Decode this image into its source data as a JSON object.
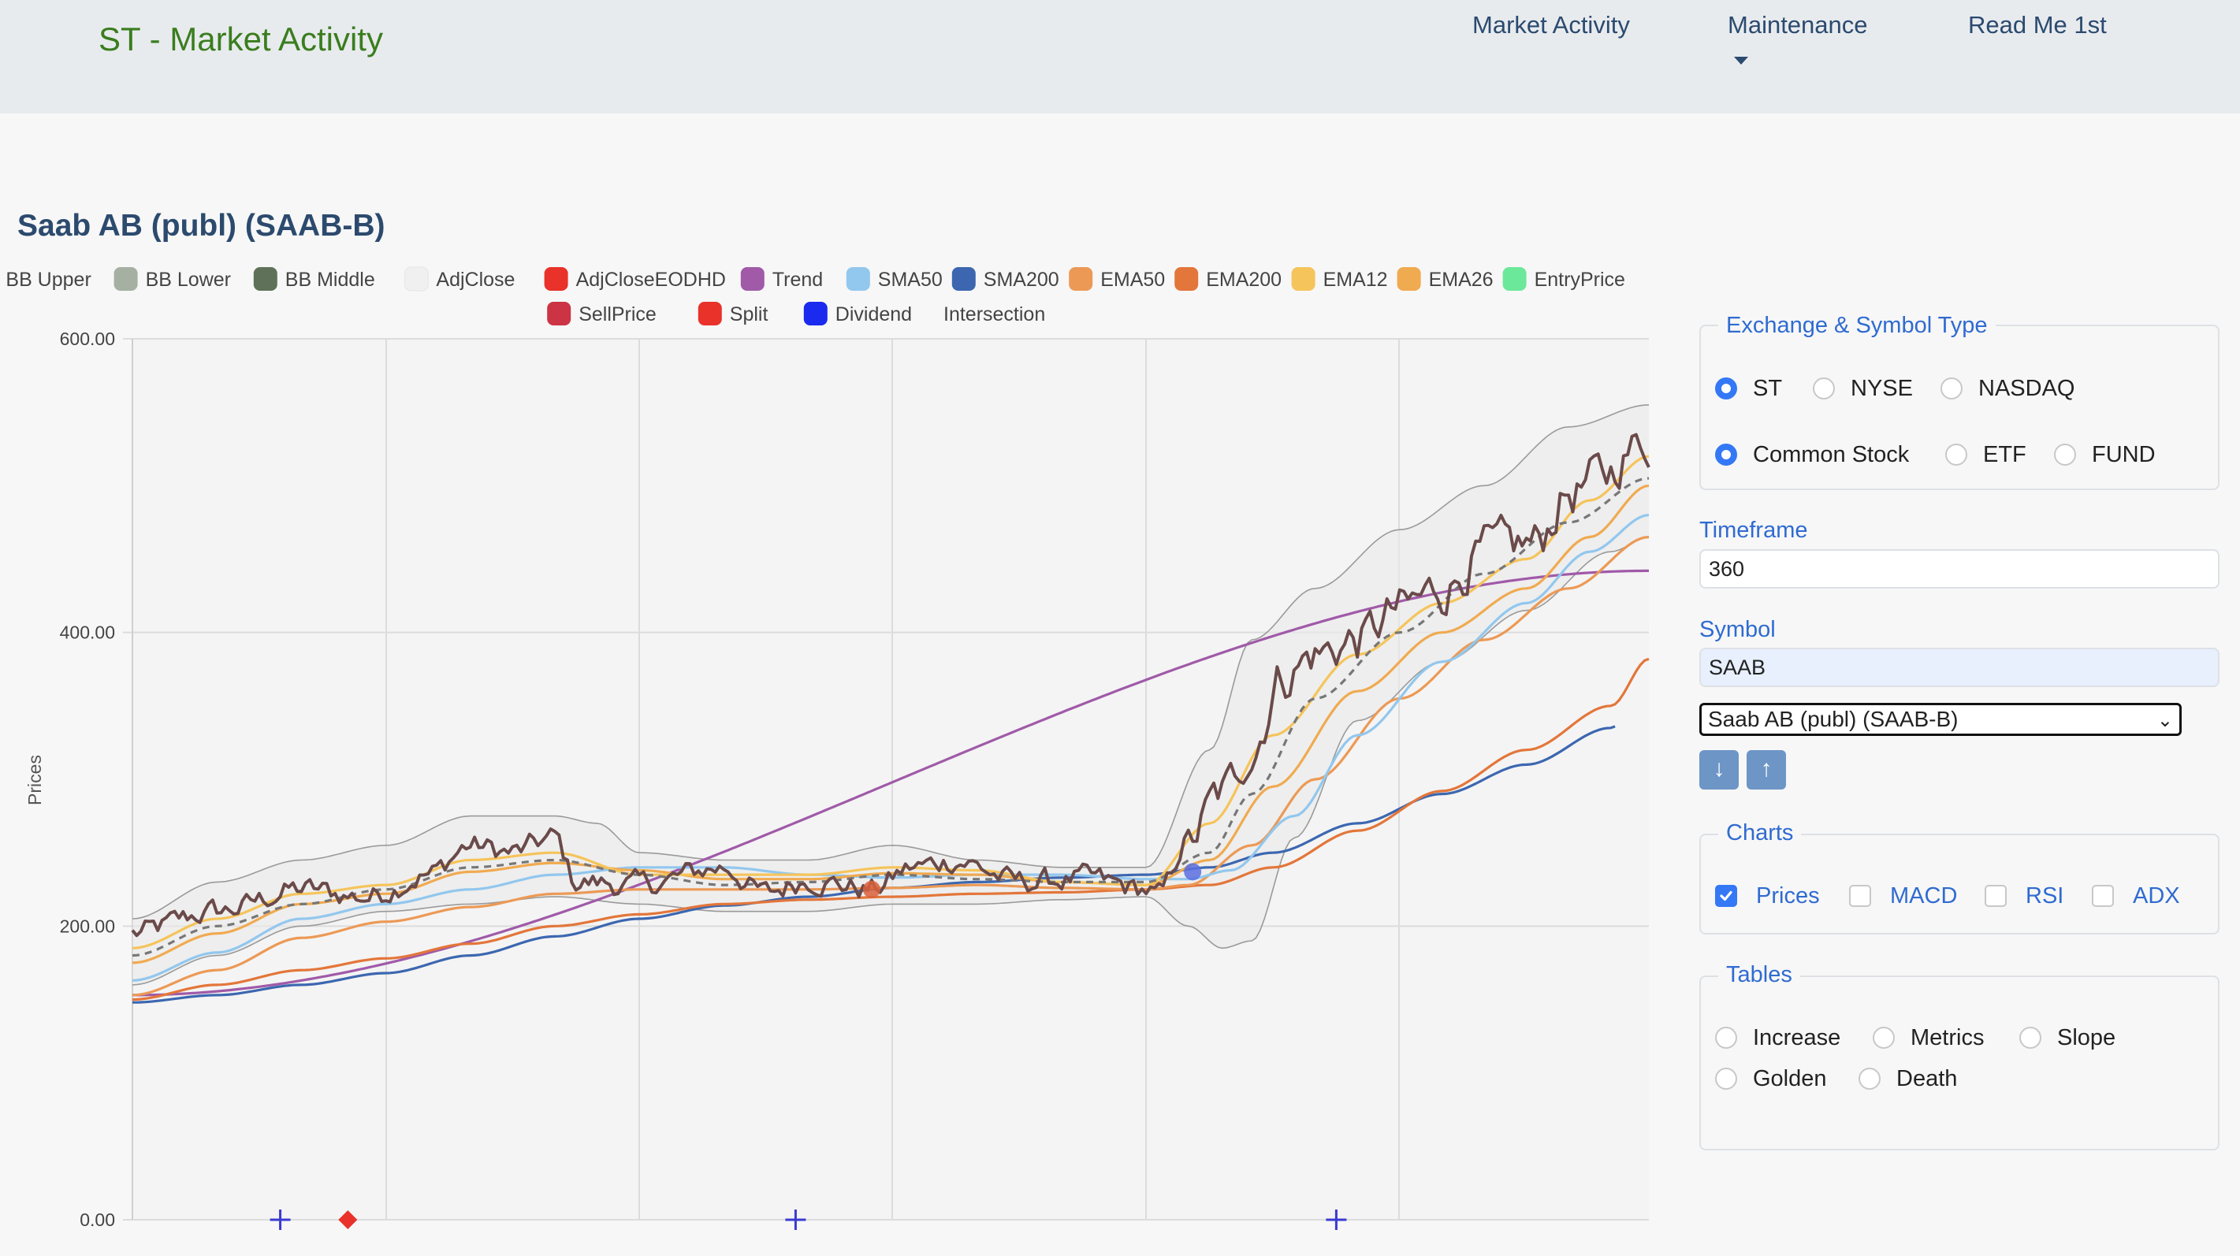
{
  "app": {
    "brand": "ST - Market Activity"
  },
  "nav": {
    "market_activity": "Market Activity",
    "maintenance": "Maintenance",
    "read_me": "Read Me 1st"
  },
  "page": {
    "title": "Saab AB (publ) (SAAB-B)"
  },
  "sidebar": {
    "exchange": {
      "title": "Exchange & Symbol Type",
      "exchanges": [
        "ST",
        "NYSE",
        "NASDAQ"
      ],
      "selected_exchange": "ST",
      "types": [
        "Common Stock",
        "ETF",
        "FUND"
      ],
      "selected_type": "Common Stock"
    },
    "timeframe": {
      "label": "Timeframe",
      "value": "360"
    },
    "symbol": {
      "label": "Symbol",
      "value": "SAAB",
      "selected_option": "Saab AB (publ) (SAAB-B)",
      "down_icon": "arrow-down-icon",
      "up_icon": "arrow-up-icon"
    },
    "charts": {
      "title": "Charts",
      "options": [
        "Prices",
        "MACD",
        "RSI",
        "ADX"
      ],
      "checked": [
        "Prices"
      ]
    },
    "tables": {
      "title": "Tables",
      "options": [
        "Increase",
        "Metrics",
        "Slope",
        "Golden",
        "Death"
      ]
    }
  },
  "colors": {
    "accent": "#3478f6",
    "brand": "#3a7d1e",
    "nav_text": "#2b4a6f",
    "section_title": "#2f6bd1"
  },
  "chart_data": {
    "type": "line",
    "ylabel": "Prices",
    "ylim": [
      0,
      600
    ],
    "yticks": [
      "0.00",
      "200.00",
      "400.00",
      "600.00"
    ],
    "grid": true,
    "legend_position": "top",
    "legend": [
      {
        "name": "BB Upper",
        "color": "#8a9a86"
      },
      {
        "name": "BB Lower",
        "color": "#a5b0a2"
      },
      {
        "name": "BB Middle",
        "color": "#5f7159"
      },
      {
        "name": "AdjClose",
        "color": "#f0f0f0"
      },
      {
        "name": "AdjCloseEODHD",
        "color": "#e8322a"
      },
      {
        "name": "Trend",
        "color": "#a05aa8"
      },
      {
        "name": "SMA50",
        "color": "#92c7ee"
      },
      {
        "name": "SMA200",
        "color": "#3c67b0"
      },
      {
        "name": "EMA50",
        "color": "#ec9955"
      },
      {
        "name": "EMA200",
        "color": "#e3763a"
      },
      {
        "name": "EMA12",
        "color": "#f5c45a"
      },
      {
        "name": "EMA26",
        "color": "#f0aa50"
      },
      {
        "name": "EntryPrice",
        "color": "#6ce89a"
      },
      {
        "name": "SellPrice",
        "color": "#cc3344"
      },
      {
        "name": "Split",
        "color": "#e8322a"
      },
      {
        "name": "Dividend",
        "color": "#1a2aee"
      },
      {
        "name": "Intersection",
        "color": ""
      }
    ],
    "n_points": 360,
    "series": [
      {
        "name": "AdjClose",
        "color": "#6b4a4a",
        "anchors": [
          [
            0,
            195
          ],
          [
            20,
            210
          ],
          [
            40,
            225
          ],
          [
            55,
            220
          ],
          [
            70,
            235
          ],
          [
            80,
            255
          ],
          [
            90,
            250
          ],
          [
            100,
            260
          ],
          [
            105,
            230
          ],
          [
            120,
            228
          ],
          [
            140,
            240
          ],
          [
            150,
            222
          ],
          [
            160,
            232
          ],
          [
            175,
            225
          ],
          [
            185,
            240
          ],
          [
            195,
            245
          ],
          [
            210,
            230
          ],
          [
            225,
            232
          ],
          [
            240,
            225
          ],
          [
            243,
            220
          ],
          [
            250,
            260
          ],
          [
            258,
            290
          ],
          [
            265,
            320
          ],
          [
            272,
            370
          ],
          [
            280,
            385
          ],
          [
            290,
            395
          ],
          [
            300,
            415
          ],
          [
            310,
            430
          ],
          [
            320,
            455
          ],
          [
            332,
            460
          ],
          [
            340,
            495
          ],
          [
            348,
            505
          ],
          [
            355,
            525
          ],
          [
            359,
            530
          ]
        ]
      },
      {
        "name": "BB Upper",
        "color": "#9a9a9a",
        "anchors": [
          [
            0,
            205
          ],
          [
            20,
            230
          ],
          [
            40,
            245
          ],
          [
            60,
            255
          ],
          [
            80,
            275
          ],
          [
            100,
            275
          ],
          [
            110,
            270
          ],
          [
            120,
            250
          ],
          [
            140,
            245
          ],
          [
            160,
            245
          ],
          [
            180,
            255
          ],
          [
            200,
            245
          ],
          [
            220,
            240
          ],
          [
            240,
            240
          ],
          [
            255,
            320
          ],
          [
            265,
            395
          ],
          [
            280,
            430
          ],
          [
            300,
            470
          ],
          [
            320,
            500
          ],
          [
            340,
            540
          ],
          [
            359,
            555
          ]
        ]
      },
      {
        "name": "BB Lower",
        "color": "#9a9a9a",
        "anchors": [
          [
            0,
            160
          ],
          [
            20,
            180
          ],
          [
            40,
            200
          ],
          [
            60,
            210
          ],
          [
            80,
            215
          ],
          [
            100,
            220
          ],
          [
            120,
            215
          ],
          [
            140,
            210
          ],
          [
            160,
            210
          ],
          [
            180,
            215
          ],
          [
            200,
            215
          ],
          [
            220,
            218
          ],
          [
            240,
            220
          ],
          [
            250,
            200
          ],
          [
            258,
            185
          ],
          [
            265,
            190
          ],
          [
            275,
            260
          ],
          [
            290,
            340
          ],
          [
            310,
            380
          ],
          [
            330,
            415
          ],
          [
            350,
            455
          ],
          [
            359,
            465
          ]
        ]
      },
      {
        "name": "BB Middle",
        "color": "#777777",
        "dash": true,
        "anchors": [
          [
            0,
            180
          ],
          [
            20,
            200
          ],
          [
            40,
            215
          ],
          [
            60,
            225
          ],
          [
            80,
            240
          ],
          [
            100,
            245
          ],
          [
            120,
            235
          ],
          [
            140,
            228
          ],
          [
            160,
            230
          ],
          [
            180,
            235
          ],
          [
            200,
            232
          ],
          [
            220,
            230
          ],
          [
            240,
            230
          ],
          [
            255,
            250
          ],
          [
            265,
            290
          ],
          [
            280,
            355
          ],
          [
            300,
            400
          ],
          [
            320,
            440
          ],
          [
            340,
            475
          ],
          [
            359,
            505
          ]
        ]
      },
      {
        "name": "EMA12",
        "color": "#f5c45a",
        "anchors": [
          [
            0,
            185
          ],
          [
            20,
            205
          ],
          [
            40,
            222
          ],
          [
            60,
            228
          ],
          [
            80,
            245
          ],
          [
            100,
            250
          ],
          [
            120,
            235
          ],
          [
            140,
            235
          ],
          [
            160,
            235
          ],
          [
            180,
            240
          ],
          [
            200,
            238
          ],
          [
            220,
            230
          ],
          [
            240,
            228
          ],
          [
            255,
            270
          ],
          [
            270,
            330
          ],
          [
            290,
            385
          ],
          [
            310,
            420
          ],
          [
            330,
            450
          ],
          [
            345,
            490
          ],
          [
            359,
            520
          ]
        ]
      },
      {
        "name": "EMA26",
        "color": "#f0aa50",
        "anchors": [
          [
            0,
            175
          ],
          [
            20,
            195
          ],
          [
            40,
            215
          ],
          [
            60,
            222
          ],
          [
            80,
            237
          ],
          [
            100,
            243
          ],
          [
            120,
            238
          ],
          [
            140,
            232
          ],
          [
            160,
            232
          ],
          [
            180,
            236
          ],
          [
            200,
            235
          ],
          [
            220,
            230
          ],
          [
            240,
            228
          ],
          [
            255,
            245
          ],
          [
            270,
            295
          ],
          [
            290,
            360
          ],
          [
            310,
            400
          ],
          [
            330,
            430
          ],
          [
            345,
            465
          ],
          [
            359,
            500
          ]
        ]
      },
      {
        "name": "SMA50",
        "color": "#92c7ee",
        "anchors": [
          [
            0,
            163
          ],
          [
            20,
            182
          ],
          [
            40,
            205
          ],
          [
            60,
            215
          ],
          [
            80,
            225
          ],
          [
            100,
            235
          ],
          [
            120,
            240
          ],
          [
            140,
            240
          ],
          [
            160,
            235
          ],
          [
            180,
            233
          ],
          [
            200,
            235
          ],
          [
            220,
            235
          ],
          [
            240,
            232
          ],
          [
            250,
            232
          ],
          [
            260,
            238
          ],
          [
            275,
            275
          ],
          [
            290,
            330
          ],
          [
            310,
            380
          ],
          [
            330,
            420
          ],
          [
            345,
            455
          ],
          [
            359,
            480
          ]
        ]
      },
      {
        "name": "EMA50",
        "color": "#ec9955",
        "anchors": [
          [
            0,
            153
          ],
          [
            20,
            170
          ],
          [
            40,
            192
          ],
          [
            60,
            203
          ],
          [
            80,
            213
          ],
          [
            100,
            222
          ],
          [
            120,
            225
          ],
          [
            140,
            225
          ],
          [
            160,
            225
          ],
          [
            180,
            226
          ],
          [
            200,
            228
          ],
          [
            220,
            226
          ],
          [
            240,
            225
          ],
          [
            250,
            228
          ],
          [
            265,
            255
          ],
          [
            280,
            300
          ],
          [
            300,
            355
          ],
          [
            320,
            395
          ],
          [
            340,
            430
          ],
          [
            359,
            465
          ]
        ]
      },
      {
        "name": "EMA200",
        "color": "#e3763a",
        "anchors": [
          [
            0,
            150
          ],
          [
            20,
            160
          ],
          [
            40,
            170
          ],
          [
            60,
            178
          ],
          [
            80,
            188
          ],
          [
            100,
            200
          ],
          [
            120,
            208
          ],
          [
            140,
            215
          ],
          [
            160,
            218
          ],
          [
            180,
            220
          ],
          [
            200,
            222
          ],
          [
            220,
            223
          ],
          [
            240,
            225
          ],
          [
            255,
            228
          ],
          [
            270,
            240
          ],
          [
            290,
            265
          ],
          [
            310,
            292
          ],
          [
            330,
            320
          ],
          [
            350,
            350
          ],
          [
            359,
            382
          ]
        ]
      },
      {
        "name": "SMA200",
        "color": "#3c67b0",
        "anchors": [
          [
            0,
            148
          ],
          [
            20,
            153
          ],
          [
            40,
            160
          ],
          [
            60,
            168
          ],
          [
            80,
            180
          ],
          [
            100,
            193
          ],
          [
            120,
            205
          ],
          [
            140,
            214
          ],
          [
            160,
            220
          ],
          [
            180,
            226
          ],
          [
            200,
            230
          ],
          [
            220,
            233
          ],
          [
            240,
            235
          ],
          [
            255,
            240
          ],
          [
            270,
            250
          ],
          [
            290,
            270
          ],
          [
            310,
            290
          ],
          [
            330,
            310
          ],
          [
            350,
            335
          ],
          [
            351,
            336
          ]
        ]
      },
      {
        "name": "Trend",
        "color": "#a05aa8",
        "anchors": [
          [
            0,
            153
          ],
          [
            359,
            442
          ]
        ]
      }
    ],
    "markers": [
      {
        "name": "Dividend",
        "x": 35,
        "y": 0,
        "symbol": "cross",
        "color": "#3b3bd0"
      },
      {
        "name": "Split",
        "x": 51,
        "y": 0,
        "symbol": "diamond",
        "color": "#e8322a"
      },
      {
        "name": "Dividend",
        "x": 157,
        "y": 0,
        "symbol": "cross",
        "color": "#3b3bd0"
      },
      {
        "name": "Dividend",
        "x": 285,
        "y": 0,
        "symbol": "cross",
        "color": "#3b3bd0"
      },
      {
        "name": "Intersection",
        "x": 175,
        "y": 225,
        "symbol": "circle",
        "color": "#d9603b"
      },
      {
        "name": "Intersection",
        "x": 251,
        "y": 237,
        "symbol": "circle",
        "color": "#5a6ee0"
      }
    ]
  }
}
